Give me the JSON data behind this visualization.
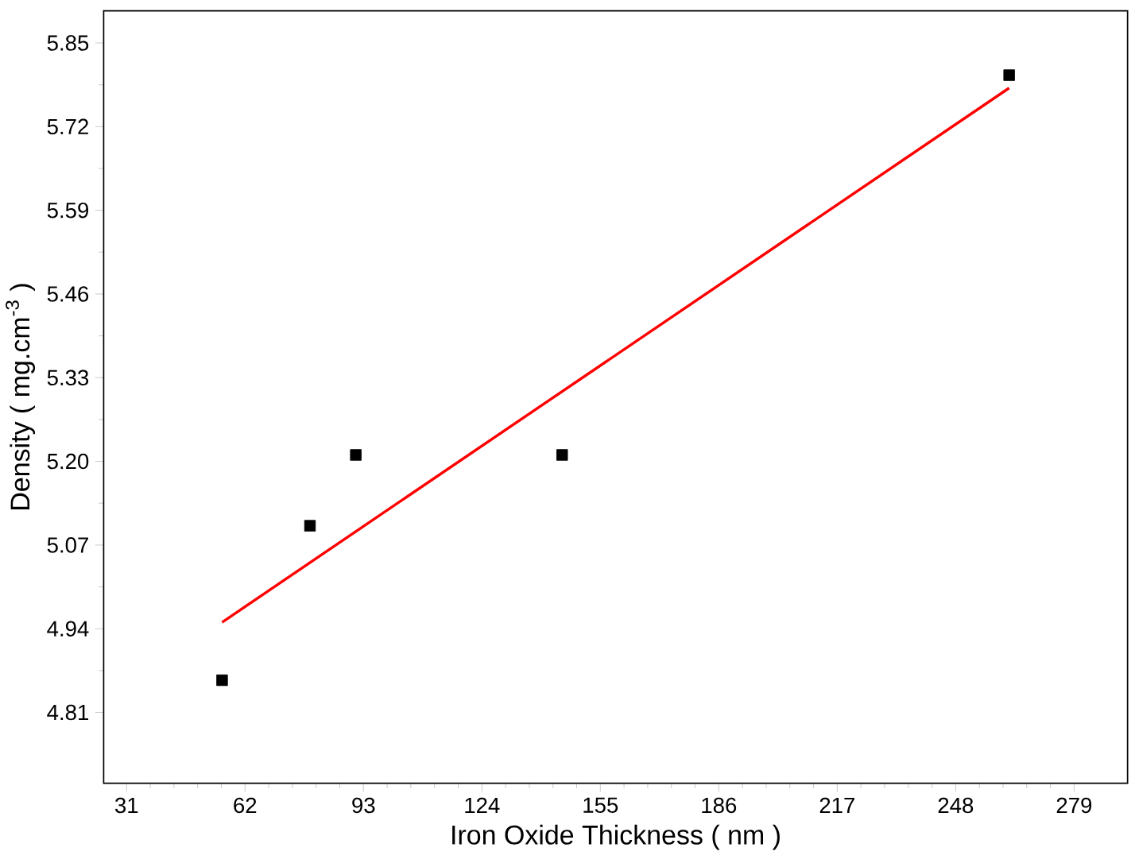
{
  "chart_data": {
    "type": "scatter",
    "xlabel": "Iron Oxide Thickness ( nm )",
    "ylabel": "Density ( mg.cm$^{-3}$ )",
    "xlim": [
      25,
      293
    ],
    "ylim": [
      4.7,
      5.9
    ],
    "xticks": [
      31,
      62,
      93,
      124,
      155,
      186,
      217,
      248,
      279
    ],
    "yticks": [
      4.81,
      4.94,
      5.07,
      {
        "value": 5.2,
        "label": "5.20"
      },
      5.33,
      5.46,
      5.59,
      5.72,
      5.85
    ],
    "grid": false,
    "series": [
      {
        "marker": "square",
        "color": "#000000",
        "x": [
          56,
          79,
          91,
          145,
          262
        ],
        "values": [
          4.86,
          5.1,
          5.21,
          5.21,
          5.8
        ]
      },
      {
        "type": "line",
        "color": "#ff0000",
        "x": [
          56,
          262
        ],
        "values": [
          4.95,
          5.78
        ]
      }
    ]
  }
}
